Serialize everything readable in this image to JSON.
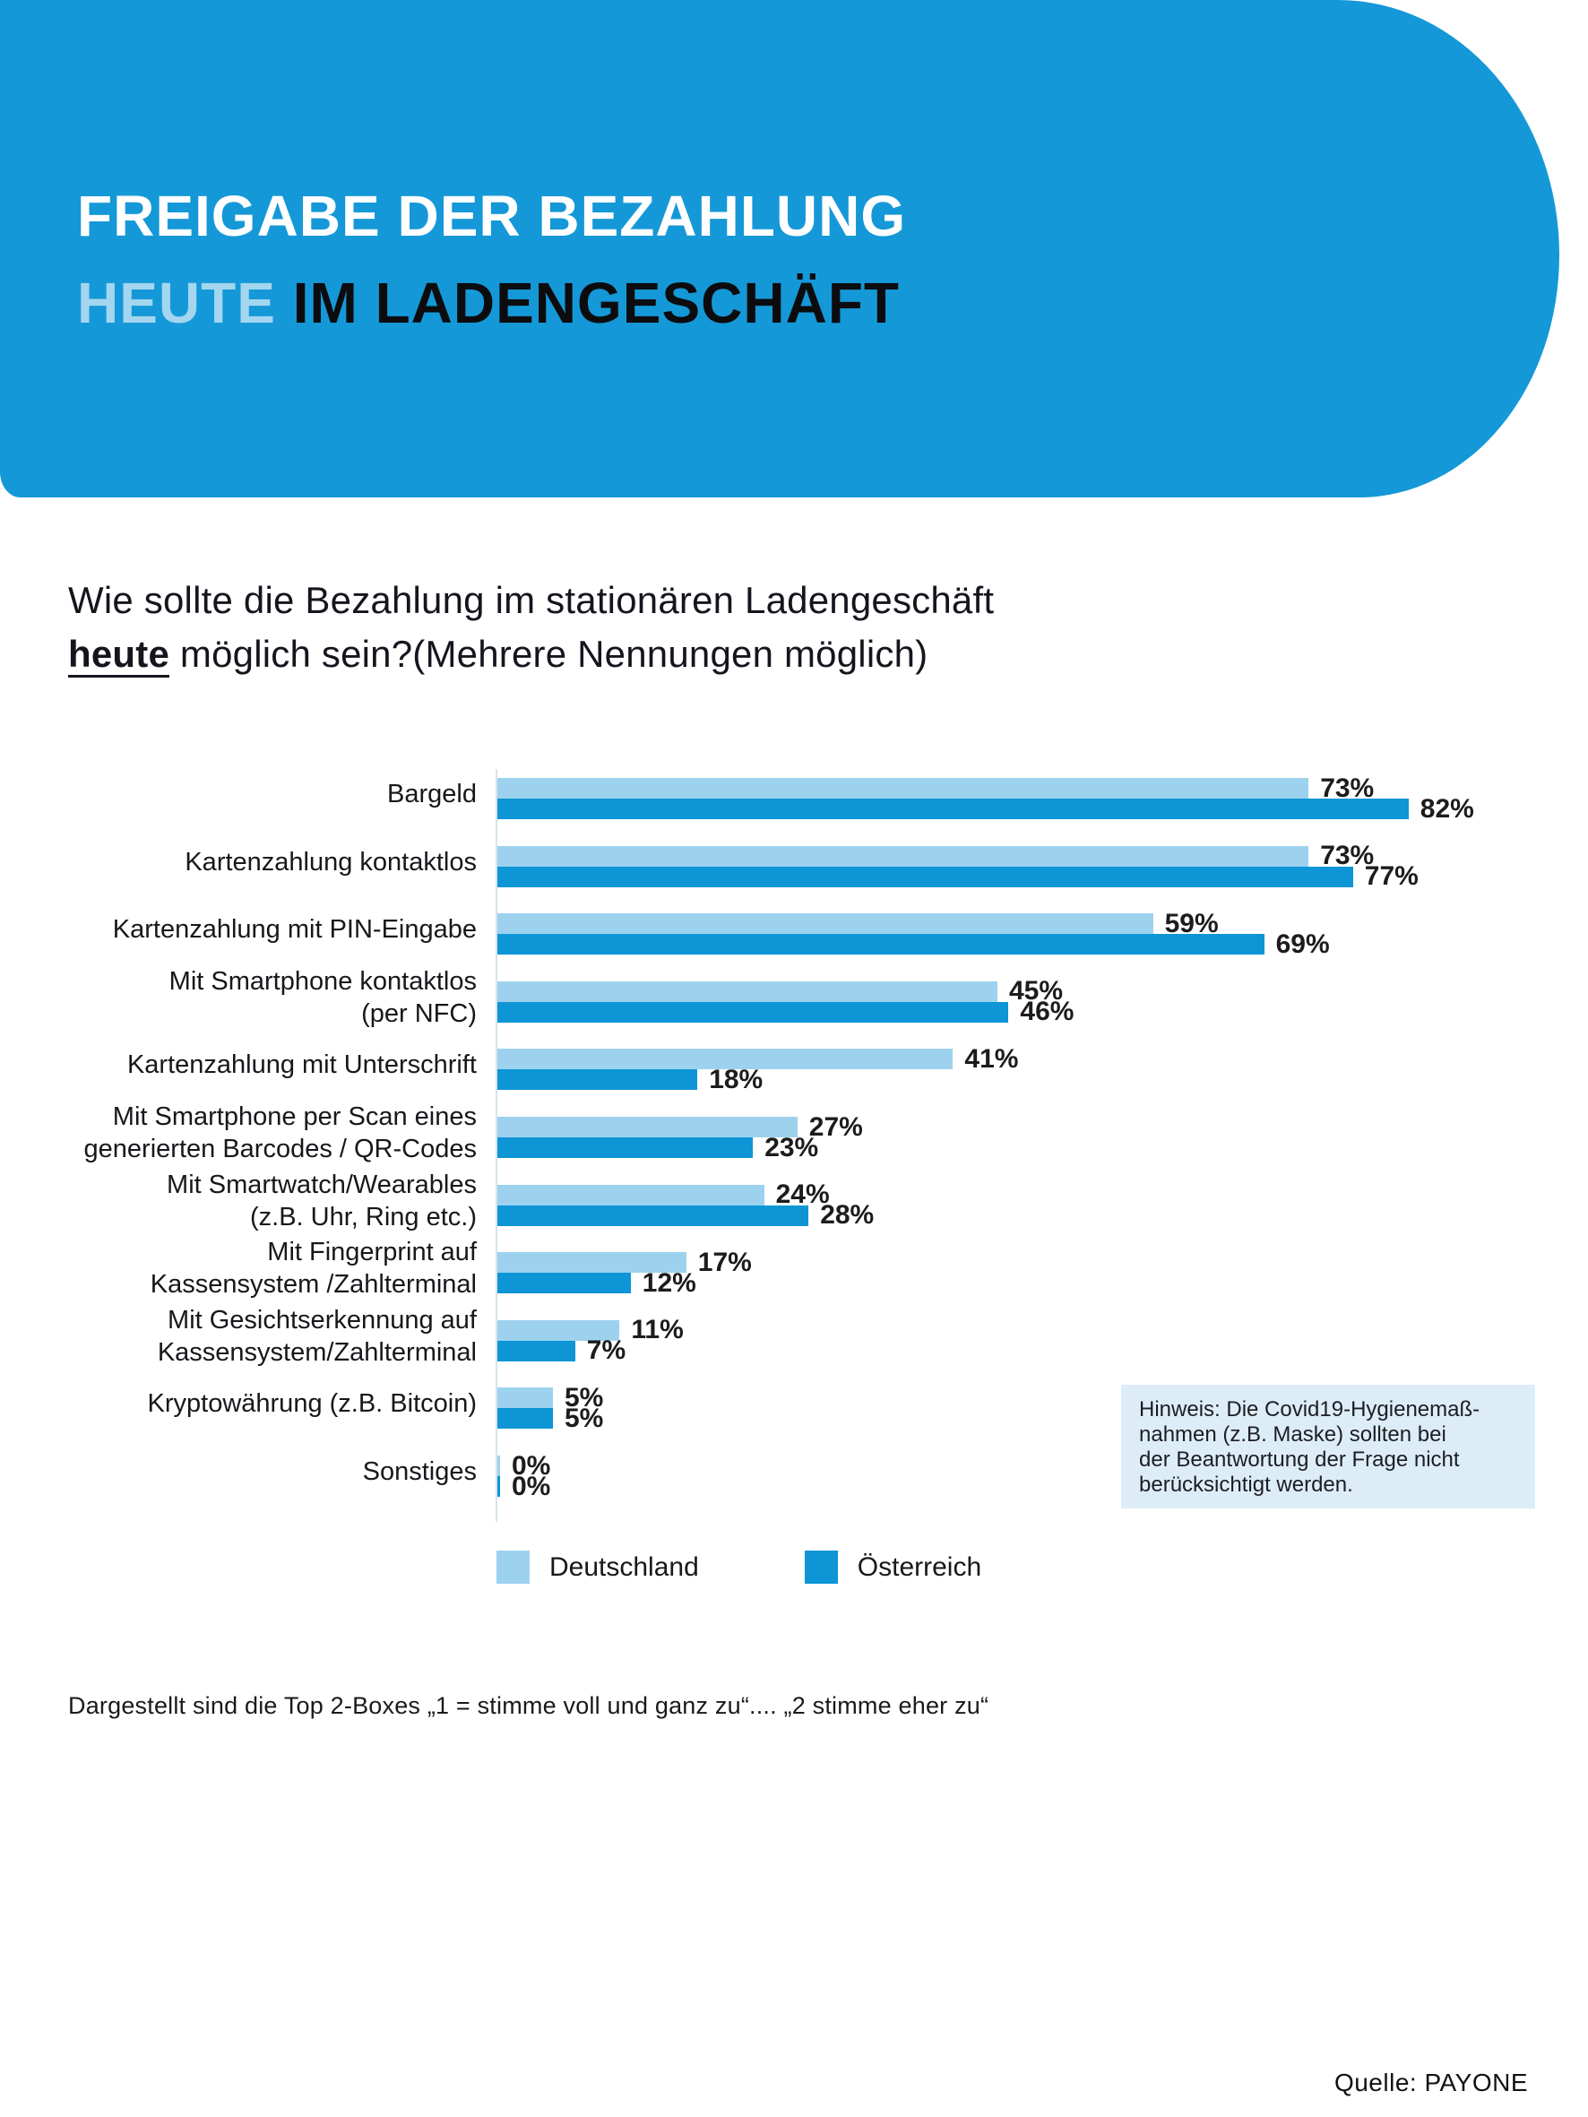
{
  "banner": {
    "title_line1": "FREIGABE DER BEZAHLUNG",
    "title_line2_highlight": "HEUTE",
    "title_line2_rest": " IM LADENGESCHÄFT",
    "bg_color": "#1598d7",
    "highlight_color": "#a4d6f0"
  },
  "question": {
    "line1": "Wie sollte die Bezahlung im stationären Ladengeschäft",
    "line2_bold": "heute",
    "line2_rest": " möglich sein?(Mehrere Nennungen möglich)"
  },
  "chart_data": {
    "type": "bar",
    "orientation": "horizontal",
    "title": "Freigabe der Bezahlung heute im Ladengeschäft",
    "unit": "%",
    "xlim": [
      0,
      100
    ],
    "value_suffix": "%",
    "grid": false,
    "legend_position": "bottom",
    "categories": [
      "Bargeld",
      "Kartenzahlung kontaktlos",
      "Kartenzahlung mit PIN-Eingabe",
      "Mit Smartphone kontaktlos\n(per NFC)",
      "Kartenzahlung mit Unterschrift",
      "Mit Smartphone per Scan eines\ngenerierten Barcodes / QR-Codes",
      "Mit Smartwatch/Wearables\n(z.B. Uhr, Ring etc.)",
      "Mit Fingerprint auf\nKassensystem /Zahlterminal",
      "Mit Gesichtserkennung auf\nKassensystem/Zahlterminal",
      "Kryptowährung (z.B. Bitcoin)",
      "Sonstiges"
    ],
    "series": [
      {
        "name": "Deutschland",
        "color": "#9dd2ee",
        "values": [
          73,
          73,
          59,
          45,
          41,
          27,
          24,
          17,
          11,
          5,
          0
        ]
      },
      {
        "name": "Österreich",
        "color": "#0d95d6",
        "values": [
          82,
          77,
          69,
          46,
          18,
          23,
          28,
          12,
          7,
          5,
          0
        ]
      }
    ]
  },
  "note": {
    "text": "Hinweis: Die Covid19-Hygienemaß-\nnahmen (z.B. Maske) sollten bei\nder Beantwortung der Frage nicht\nberücksichtigt werden."
  },
  "footnote": "Dargestellt sind die Top 2-Boxes „1 = stimme voll und ganz zu“.... „2 stimme eher zu“",
  "source": "Quelle: PAYONE"
}
